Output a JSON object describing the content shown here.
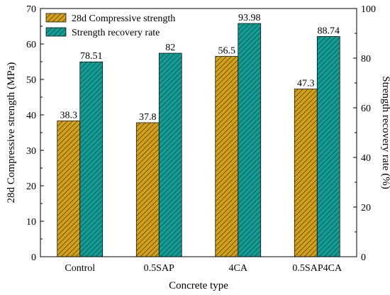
{
  "chart_data": {
    "type": "bar",
    "categories": [
      "Control",
      "0.5SAP",
      "4CA",
      "0.5SAP4CA"
    ],
    "xlabel": "Concrete type",
    "series": [
      {
        "name": "28d Compressive strength",
        "axis": "left",
        "values": [
          38.3,
          37.8,
          56.5,
          47.3
        ],
        "labels": [
          "38.3",
          "37.8",
          "56.5",
          "47.3"
        ],
        "color": "#D4A017",
        "hatch": "diagonal"
      },
      {
        "name": "Strength recovery rate",
        "axis": "right",
        "values": [
          78.51,
          82,
          93.98,
          88.74
        ],
        "labels": [
          "78.51",
          "82",
          "93.98",
          "88.74"
        ],
        "color": "#0E9E96",
        "hatch": "diagonal"
      }
    ],
    "y_left": {
      "label": "28d Compressive strength (MPa)",
      "range": [
        0,
        70
      ],
      "ticks": [
        "0",
        "10",
        "20",
        "30",
        "40",
        "50",
        "60",
        "70"
      ]
    },
    "y_right": {
      "label": "Strength recovery rate (%)",
      "range": [
        0,
        100
      ],
      "ticks": [
        "0",
        "20",
        "40",
        "60",
        "80",
        "100"
      ]
    },
    "grid": false,
    "legend": "top-left"
  }
}
